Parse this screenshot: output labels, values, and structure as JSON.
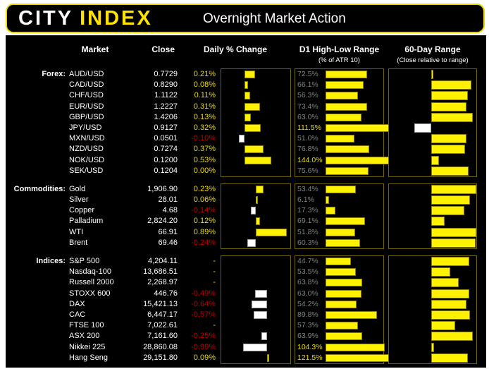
{
  "header": {
    "logo_primary": "CITY",
    "logo_secondary": "INDEX",
    "title": "Overnight Market Action"
  },
  "table_headers": {
    "market": "Market",
    "close": "Close",
    "daily_change": "Daily % Change",
    "d1_range": "D1 High-Low Range",
    "d1_range_sub": "(% of ATR 10)",
    "range_60day": "60-Day Range",
    "range_60day_sub": "(Close relative to range)"
  },
  "colors": {
    "page_bg": "#ffffff",
    "panel_bg": "#000000",
    "brand_yellow": "#ffe400",
    "bar_yellow": "#fff200",
    "bar_yellow_border": "#8a7d00",
    "bar_white": "#ffffff",
    "bar_white_border": "#a0a0a0",
    "yellow_text": "#f0dc00",
    "red_text": "#c00000",
    "gray_text": "#828282",
    "white_text": "#ffffff",
    "panel_border": "#6e6400"
  },
  "chart_data": {
    "type": "table",
    "columns": [
      "Market",
      "Close",
      "Daily % Change",
      "D1 High-Low Range (% of ATR 10)",
      "60-Day Range (Close relative to range)"
    ],
    "range60_axis": {
      "min": 0,
      "max": 100,
      "baseline_pct": 48
    },
    "d1_axis": {
      "full_track_pct": 200,
      "highlight_threshold_pct": 100
    },
    "sections": [
      {
        "name": "Forex:",
        "daily_axis": {
          "min": -0.45,
          "max": 0.9
        },
        "rows": [
          {
            "market": "AUD/USD",
            "close": "0.7729",
            "daily_pct": 0.21,
            "daily_label": "0.21%",
            "atr_pct": 72.5,
            "atr_label": "72.5%",
            "range60_pct": 51
          },
          {
            "market": "CAD/USD",
            "close": "0.8290",
            "daily_pct": 0.08,
            "daily_label": "0.08%",
            "atr_pct": 66.1,
            "atr_label": "66.1%",
            "range60_pct": 94
          },
          {
            "market": "CHF/USD",
            "close": "1.1122",
            "daily_pct": 0.11,
            "daily_label": "0.11%",
            "atr_pct": 56.3,
            "atr_label": "56.3%",
            "range60_pct": 90
          },
          {
            "market": "EUR/USD",
            "close": "1.2227",
            "daily_pct": 0.31,
            "daily_label": "0.31%",
            "atr_pct": 73.4,
            "atr_label": "73.4%",
            "range60_pct": 89
          },
          {
            "market": "GBP/USD",
            "close": "1.4206",
            "daily_pct": 0.13,
            "daily_label": "0.13%",
            "atr_pct": 63.0,
            "atr_label": "63.0%",
            "range60_pct": 96
          },
          {
            "market": "JPY/USD",
            "close": "0.9127",
            "daily_pct": 0.32,
            "daily_label": "0.32%",
            "atr_pct": 111.5,
            "atr_label": "111.5%",
            "range60_pct": 29
          },
          {
            "market": "MXN/USD",
            "close": "0.0501",
            "daily_pct": -0.1,
            "daily_label": "-0.10%",
            "atr_pct": 51.0,
            "atr_label": "51.0%",
            "range60_pct": 89
          },
          {
            "market": "NZD/USD",
            "close": "0.7274",
            "daily_pct": 0.37,
            "daily_label": "0.37%",
            "atr_pct": 76.8,
            "atr_label": "76.8%",
            "range60_pct": 87
          },
          {
            "market": "NOK/USD",
            "close": "0.1200",
            "daily_pct": 0.53,
            "daily_label": "0.53%",
            "atr_pct": 144.0,
            "atr_label": "144.0%",
            "range60_pct": 57
          },
          {
            "market": "SEK/USD",
            "close": "0.1204",
            "daily_pct": 0.0,
            "daily_label": "0.00%",
            "atr_pct": 75.6,
            "atr_label": "75.6%",
            "range60_pct": 91
          }
        ]
      },
      {
        "name": "Commodities:",
        "daily_axis": {
          "min": -1.0,
          "max": 1.0
        },
        "rows": [
          {
            "market": "Gold",
            "close": "1,906.90",
            "daily_pct": 0.23,
            "daily_label": "0.23%",
            "atr_pct": 53.4,
            "atr_label": "53.4%",
            "range60_pct": 100
          },
          {
            "market": "Silver",
            "close": "28.01",
            "daily_pct": 0.06,
            "daily_label": "0.06%",
            "atr_pct": 6.1,
            "atr_label": "6.1%",
            "range60_pct": 93
          },
          {
            "market": "Copper",
            "close": "4.68",
            "daily_pct": -0.14,
            "daily_label": "-0.14%",
            "atr_pct": 17.3,
            "atr_label": "17.3%",
            "range60_pct": 86
          },
          {
            "market": "Palladium",
            "close": "2,824.20",
            "daily_pct": 0.12,
            "daily_label": "0.12%",
            "atr_pct": 69.1,
            "atr_label": "69.1%",
            "range60_pct": 64
          },
          {
            "market": "WTI",
            "close": "66.91",
            "daily_pct": 0.89,
            "daily_label": "0.89%",
            "atr_pct": 51.8,
            "atr_label": "51.8%",
            "range60_pct": 100
          },
          {
            "market": "Brent",
            "close": "69.46",
            "daily_pct": -0.24,
            "daily_label": "-0.24%",
            "atr_pct": 60.3,
            "atr_label": "60.3%",
            "range60_pct": 99
          }
        ]
      },
      {
        "name": "Indices:",
        "daily_axis": {
          "min": -1.9,
          "max": 0.95
        },
        "rows": [
          {
            "market": "S&P 500",
            "close": "4,204.11",
            "daily_pct": null,
            "daily_label": "-",
            "atr_pct": 44.7,
            "atr_label": "44.7%",
            "range60_pct": 92
          },
          {
            "market": "Nasdaq-100",
            "close": "13,686.51",
            "daily_pct": null,
            "daily_label": "-",
            "atr_pct": 53.5,
            "atr_label": "53.5%",
            "range60_pct": 70
          },
          {
            "market": "Russell 2000",
            "close": "2,268.97",
            "daily_pct": null,
            "daily_label": "-",
            "atr_pct": 63.8,
            "atr_label": "63.8%",
            "range60_pct": 80
          },
          {
            "market": "STOXX 600",
            "close": "446.76",
            "daily_pct": -0.49,
            "daily_label": "-0.49%",
            "atr_pct": 63.0,
            "atr_label": "63.0%",
            "range60_pct": 92
          },
          {
            "market": "DAX",
            "close": "15,421.13",
            "daily_pct": -0.64,
            "daily_label": "-0.64%",
            "atr_pct": 54.2,
            "atr_label": "54.2%",
            "range60_pct": 89
          },
          {
            "market": "CAC",
            "close": "6,447.17",
            "daily_pct": -0.57,
            "daily_label": "-0.57%",
            "atr_pct": 89.8,
            "atr_label": "89.8%",
            "range60_pct": 93
          },
          {
            "market": "FTSE 100",
            "close": "7,022.61",
            "daily_pct": null,
            "daily_label": "-",
            "atr_pct": 57.3,
            "atr_label": "57.3%",
            "range60_pct": 76
          },
          {
            "market": "ASX 200",
            "close": "7,161.60",
            "daily_pct": -0.25,
            "daily_label": "-0.25%",
            "atr_pct": 63.9,
            "atr_label": "63.9%",
            "range60_pct": 96
          },
          {
            "market": "Nikkei 225",
            "close": "28,860.08",
            "daily_pct": -0.99,
            "daily_label": "-0.99%",
            "atr_pct": 104.3,
            "atr_label": "104.3%",
            "range60_pct": 52
          },
          {
            "market": "Hang Seng",
            "close": "29,151.80",
            "daily_pct": 0.09,
            "daily_label": "0.09%",
            "atr_pct": 121.5,
            "atr_label": "121.5%",
            "range60_pct": 90
          }
        ]
      }
    ]
  }
}
